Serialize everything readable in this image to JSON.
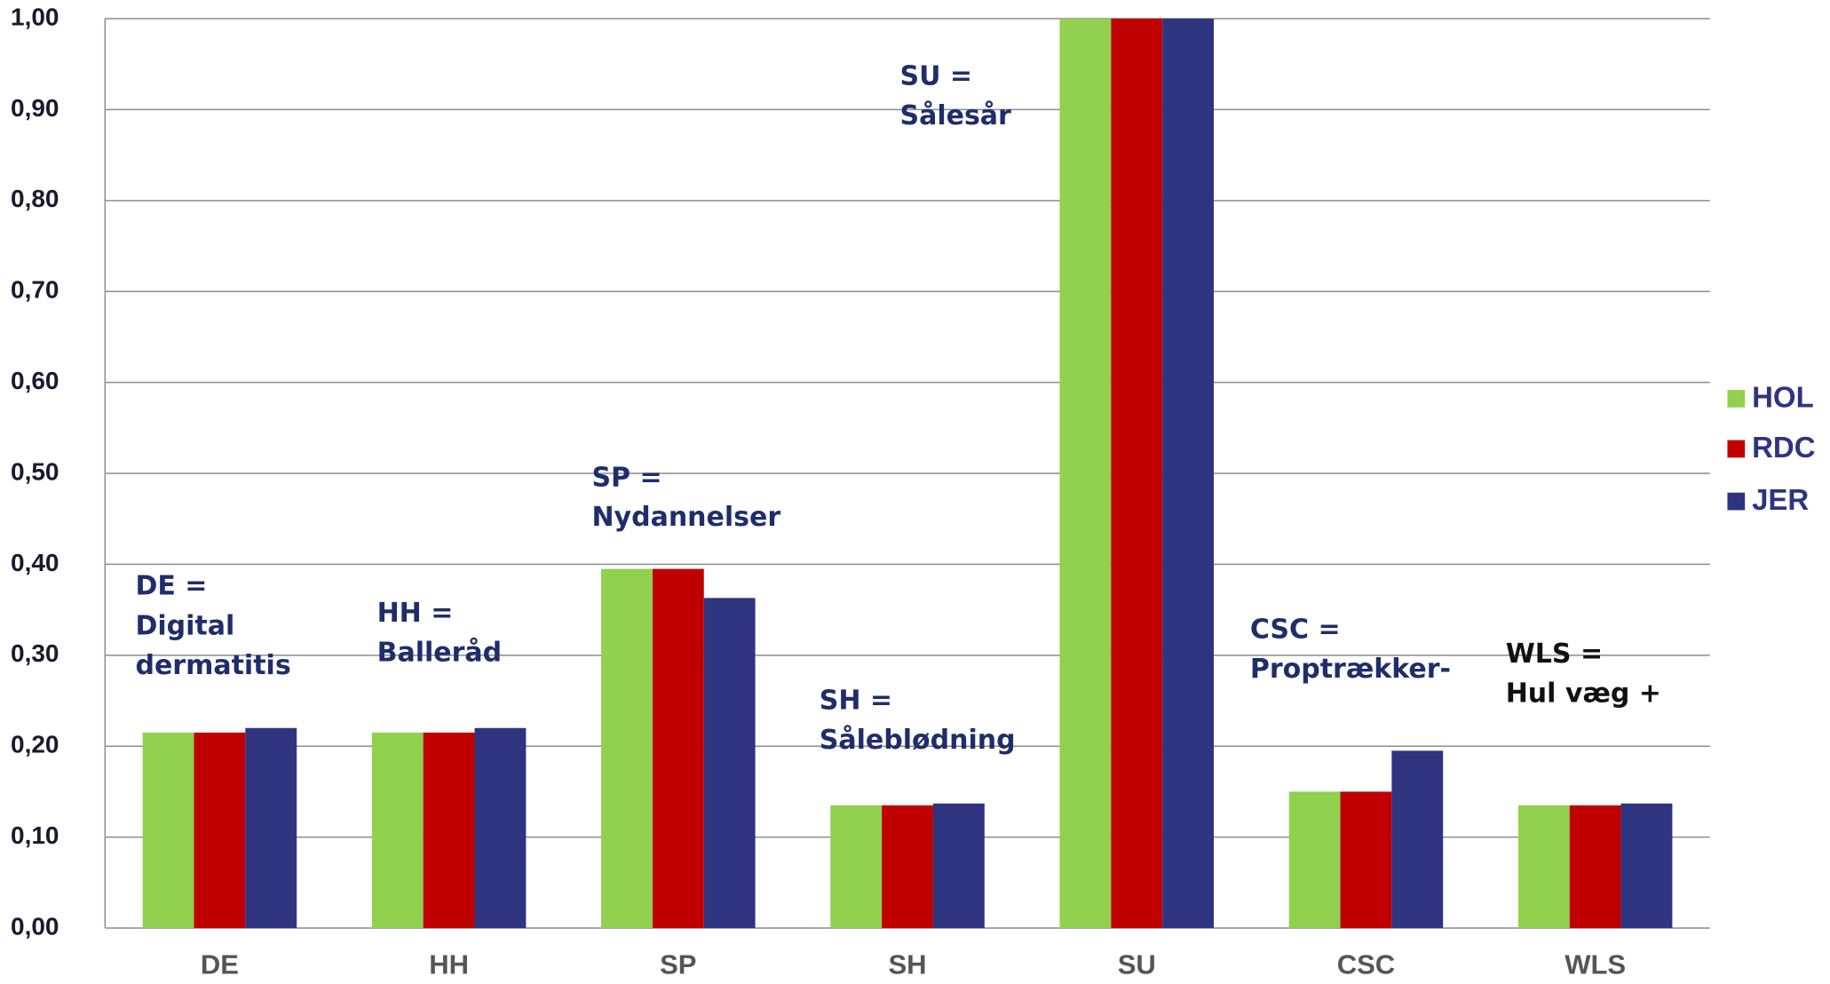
{
  "chart_data": {
    "type": "bar",
    "categories": [
      "DE",
      "HH",
      "SP",
      "SH",
      "SU",
      "CSC",
      "WLS"
    ],
    "series": [
      {
        "name": "HOL",
        "color": "#92d050",
        "values": [
          0.215,
          0.215,
          0.395,
          0.135,
          1.0,
          0.15,
          0.135
        ]
      },
      {
        "name": "RDC",
        "color": "#c00000",
        "values": [
          0.215,
          0.215,
          0.395,
          0.135,
          1.0,
          0.15,
          0.135
        ]
      },
      {
        "name": "JER",
        "color": "#2e3480",
        "values": [
          0.22,
          0.22,
          0.363,
          0.137,
          1.0,
          0.195,
          0.137
        ]
      }
    ],
    "ylim": [
      0,
      1
    ],
    "yticks": [
      {
        "value": 0,
        "label": "0,00"
      },
      {
        "value": 0.1,
        "label": "0,10"
      },
      {
        "value": 0.2,
        "label": "0,20"
      },
      {
        "value": 0.3,
        "label": "0,30"
      },
      {
        "value": 0.4,
        "label": "0,40"
      },
      {
        "value": 0.5,
        "label": "0,50"
      },
      {
        "value": 0.6,
        "label": "0,60"
      },
      {
        "value": 0.7,
        "label": "0,70"
      },
      {
        "value": 0.8,
        "label": "0,80"
      },
      {
        "value": 0.9,
        "label": "0,90"
      },
      {
        "value": 1,
        "label": "1,00"
      }
    ],
    "grid": true,
    "legend": "right",
    "annotations": [
      [
        "DE =",
        "Digital",
        "dermatitis"
      ],
      [
        "HH =",
        "Balleråd"
      ],
      [
        "SP =",
        "Nydannelser"
      ],
      [
        "SH =",
        "Såleblødning"
      ],
      [
        "SU =",
        "Sålesår"
      ],
      [
        "CSC =",
        "Proptrækker-"
      ],
      [
        "WLS =",
        "Hul væg +"
      ]
    ]
  }
}
